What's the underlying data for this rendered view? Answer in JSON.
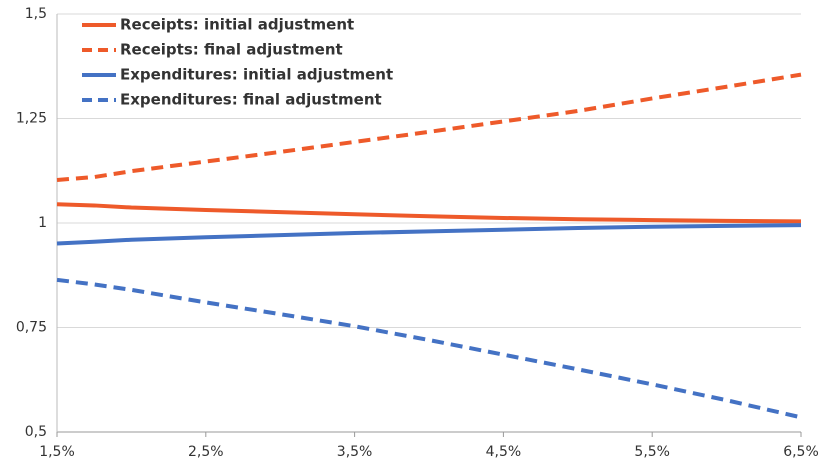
{
  "chart_data": {
    "type": "line",
    "x": [
      1.5,
      1.75,
      2,
      2.5,
      3,
      3.5,
      4,
      4.5,
      5,
      5.5,
      6,
      6.5
    ],
    "series": [
      {
        "name": "Receipts: initial adjustment",
        "color": "#ee5a2a",
        "dashed": false,
        "values": [
          1.045,
          1.042,
          1.037,
          1.031,
          1.026,
          1.021,
          1.016,
          1.012,
          1.009,
          1.007,
          1.005,
          1.004
        ]
      },
      {
        "name": "Receipts: final adjustment",
        "color": "#ee5a2a",
        "dashed": true,
        "values": [
          1.103,
          1.11,
          1.124,
          1.147,
          1.17,
          1.194,
          1.218,
          1.243,
          1.268,
          1.298,
          1.326,
          1.355
        ]
      },
      {
        "name": "Expenditures: initial adjustment",
        "color": "#4472c4",
        "dashed": false,
        "values": [
          0.951,
          0.955,
          0.96,
          0.966,
          0.971,
          0.976,
          0.98,
          0.984,
          0.988,
          0.991,
          0.993,
          0.995
        ]
      },
      {
        "name": "Expenditures: final adjustment",
        "color": "#4472c4",
        "dashed": true,
        "values": [
          0.864,
          0.853,
          0.84,
          0.81,
          0.782,
          0.753,
          0.72,
          0.685,
          0.65,
          0.614,
          0.576,
          0.535
        ]
      }
    ],
    "xlim": [
      1.5,
      6.5
    ],
    "xticks": [
      {
        "value": 1.5,
        "label": "1,5%"
      },
      {
        "value": 2.5,
        "label": "2,5%"
      },
      {
        "value": 3.5,
        "label": "3,5%"
      },
      {
        "value": 4.5,
        "label": "4,5%"
      },
      {
        "value": 5.5,
        "label": "5,5%"
      },
      {
        "value": 6.5,
        "label": "6,5%"
      }
    ],
    "ylim": [
      0.5,
      1.5
    ],
    "yticks": [
      {
        "value": 0.5,
        "label": "0,5"
      },
      {
        "value": 0.75,
        "label": "0,75"
      },
      1,
      {
        "value": 1.25,
        "label": "1,25"
      },
      {
        "value": 1.5,
        "label": "1,5"
      }
    ],
    "grid": true,
    "legend": "top-left"
  }
}
